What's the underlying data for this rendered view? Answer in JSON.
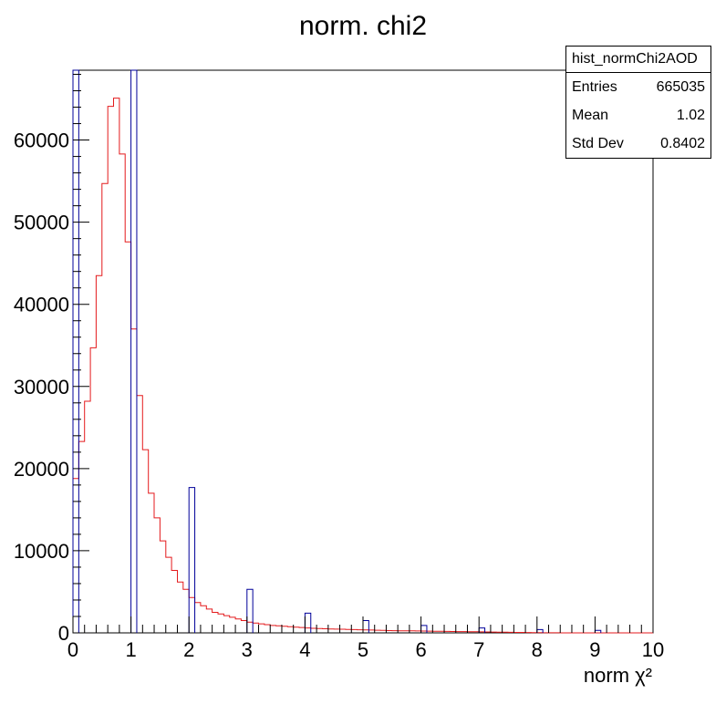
{
  "chart_data": {
    "type": "bar",
    "title": "norm. chi2",
    "xlabel": "norm χ²",
    "ylabel": "",
    "xlim": [
      0,
      10
    ],
    "ylim": [
      0,
      68500
    ],
    "x_ticks": [
      "0",
      "1",
      "2",
      "3",
      "4",
      "5",
      "6",
      "7",
      "8",
      "9",
      "10"
    ],
    "y_ticks": [
      "0",
      "10000",
      "20000",
      "30000",
      "40000",
      "50000",
      "60000"
    ],
    "grid": false,
    "bin_width": 0.1,
    "series": [
      {
        "color": "#e41a1c",
        "style": "step",
        "bin_start": 0.0,
        "values": [
          18800,
          23300,
          28200,
          34700,
          43500,
          54700,
          64100,
          65100,
          58300,
          47600,
          37000,
          28900,
          22300,
          17000,
          14000,
          11200,
          9200,
          7600,
          6200,
          5300,
          4300,
          3700,
          3300,
          2900,
          2500,
          2300,
          2100,
          1900,
          1700,
          1500,
          1300,
          1200,
          1100,
          1000,
          900,
          850,
          800,
          750,
          700,
          650,
          600,
          550,
          520,
          500,
          480,
          460,
          440,
          420,
          400,
          380,
          360,
          340,
          320,
          300,
          280,
          270,
          260,
          250,
          240,
          230,
          220,
          210,
          200,
          190,
          180,
          170,
          160,
          150,
          140,
          130,
          120,
          110,
          100,
          90,
          80,
          70,
          60,
          50,
          40,
          30,
          20,
          15,
          10,
          10,
          5,
          5,
          5,
          0,
          0,
          0,
          0,
          0,
          0,
          0,
          0,
          0,
          0,
          0,
          0,
          0
        ]
      },
      {
        "color": "#000099",
        "style": "step",
        "bins": [
          {
            "start": 0.0,
            "value": 68500
          },
          {
            "start": 1.0,
            "value": 68500
          },
          {
            "start": 2.0,
            "value": 17700
          },
          {
            "start": 3.0,
            "value": 5300
          },
          {
            "start": 4.0,
            "value": 2400
          },
          {
            "start": 5.0,
            "value": 1500
          },
          {
            "start": 6.0,
            "value": 900
          },
          {
            "start": 7.0,
            "value": 600
          },
          {
            "start": 8.0,
            "value": 400
          },
          {
            "start": 9.0,
            "value": 300
          }
        ]
      }
    ],
    "stats": {
      "name": "hist_normChi2AOD",
      "entries_label": "Entries",
      "entries": "665035",
      "mean_label": "Mean",
      "mean": "1.02",
      "stddev_label": "Std Dev",
      "stddev": "0.8402"
    }
  }
}
